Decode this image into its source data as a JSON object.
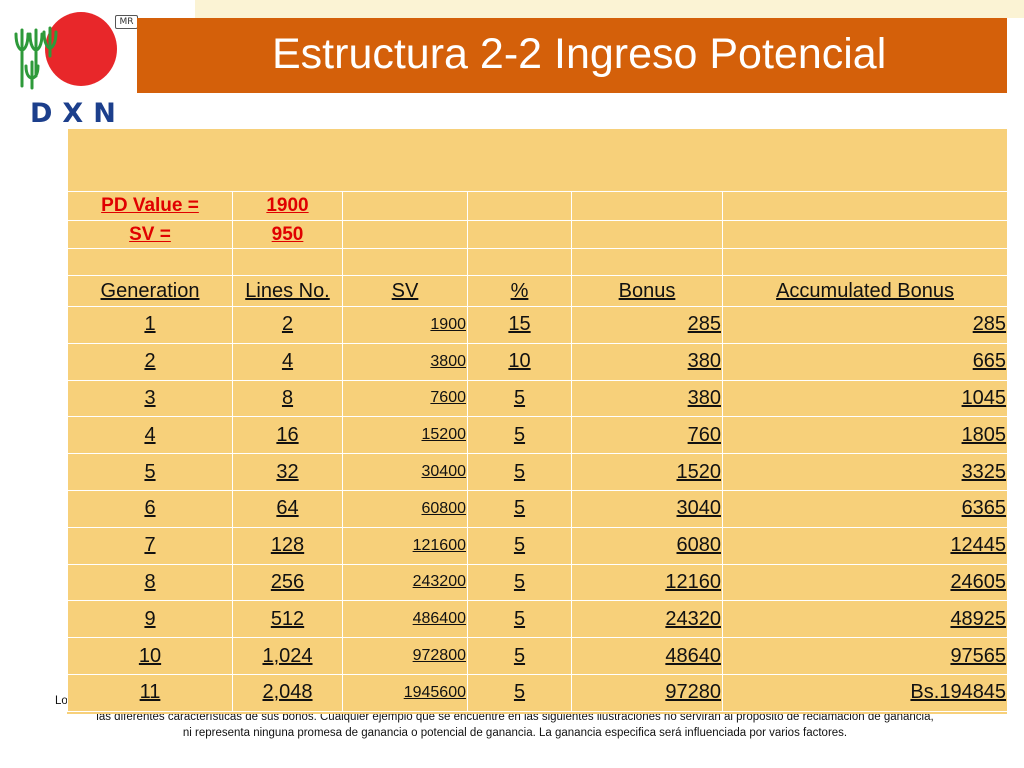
{
  "title": "Estructura 2-2 Ingreso Potencial",
  "logo": {
    "text": "DXN",
    "mark": "MR"
  },
  "pd": {
    "label": "PD Value =",
    "value": "1900"
  },
  "sv": {
    "label": "SV =",
    "value": "950"
  },
  "headers": [
    "Generation",
    "Lines No.",
    "SV",
    "%",
    "Bonus",
    "Accumulated Bonus"
  ],
  "rows": [
    [
      "1",
      "2",
      "1900",
      "15",
      "285",
      "285"
    ],
    [
      "2",
      "4",
      "3800",
      "10",
      "380",
      "665"
    ],
    [
      "3",
      "8",
      "7600",
      "5",
      "380",
      "1045"
    ],
    [
      "4",
      "16",
      "15200",
      "5",
      "760",
      "1805"
    ],
    [
      "5",
      "32",
      "30400",
      "5",
      "1520",
      "3325"
    ],
    [
      "6",
      "64",
      "60800",
      "5",
      "3040",
      "6365"
    ],
    [
      "7",
      "128",
      "121600",
      "5",
      "6080",
      "12445"
    ],
    [
      "8",
      "256",
      "243200",
      "5",
      "12160",
      "24605"
    ],
    [
      "9",
      "512",
      "486400",
      "5",
      "24320",
      "48925"
    ],
    [
      "10",
      "1,024",
      "972800",
      "5",
      "48640",
      "97565"
    ],
    [
      "11",
      "2,048",
      "1945600",
      "5",
      "97280",
      "Bs.194845"
    ]
  ],
  "disclaimer": {
    "line1": "Lo",
    "line2": "las diferentes características de sus bonos. Cualquier ejemplo que se encuentre en las siguientes ilustraciones no servirán al propósito de reclamación de ganancia,",
    "line3": "ni representa ninguna promesa de ganancia o potencial de ganancia. La ganancia especifica será influenciada por varios factores."
  },
  "colors": {
    "title_bar": "#d4600a",
    "table_bg": "#f7d07a",
    "accent_red": "#e00000",
    "logo_blue": "#1c3f8c",
    "logo_red": "#e8272a",
    "logo_green": "#2e9a3a"
  }
}
